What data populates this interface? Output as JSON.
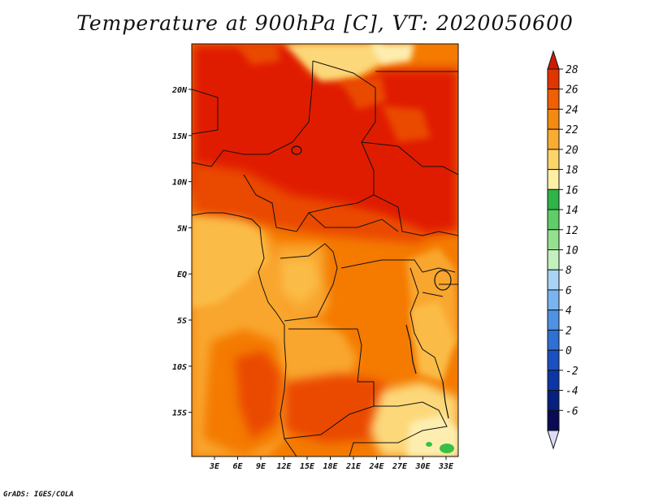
{
  "title": "Temperature at 900hPa [C], VT: 2020050600",
  "credit": "GrADS: IGES/COLA",
  "map": {
    "lon_labels": [
      "3E",
      "6E",
      "9E",
      "12E",
      "15E",
      "18E",
      "21E",
      "24E",
      "27E",
      "30E",
      "33E"
    ],
    "lat_labels": [
      "20N",
      "15N",
      "10N",
      "5N",
      "EQ",
      "5S",
      "10S",
      "15S"
    ]
  },
  "colorbar": {
    "labels": [
      "28",
      "26",
      "24",
      "22",
      "20",
      "18",
      "16",
      "14",
      "12",
      "10",
      "8",
      "6",
      "4",
      "2",
      "0",
      "-2",
      "-4",
      "-6"
    ],
    "colors": [
      "#d01a00",
      "#e23400",
      "#f06000",
      "#f58a10",
      "#f8ad30",
      "#fcd56a",
      "#fdf0a6",
      "#2fb44a",
      "#5fce68",
      "#95e08e",
      "#c4f0c0",
      "#a9d2f5",
      "#7ab4ef",
      "#4f92e3",
      "#2f70d4",
      "#1a50bf",
      "#0d36a5",
      "#06207d",
      "#0a0a55",
      "#dcdcf5"
    ]
  },
  "palette": {
    "red": "#e01c00",
    "red_orange": "#ea4800",
    "orange": "#f47a00",
    "light_orange": "#f9a62e",
    "yellow_orange": "#fbbc46",
    "pale_yellow": "#fcd87a",
    "cream": "#fdeeb0",
    "green": "#38c045"
  }
}
